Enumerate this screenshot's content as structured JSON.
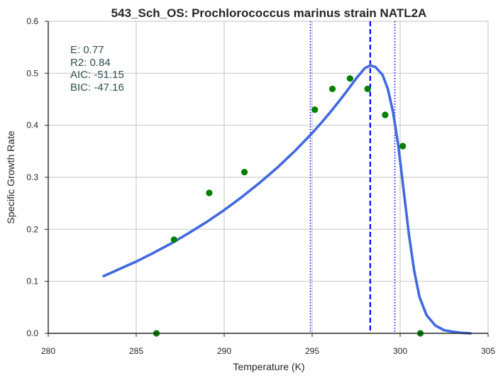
{
  "chart_data": {
    "type": "scatter",
    "title": "543_Sch_OS: Prochlorococcus marinus strain NATL2A",
    "xlabel": "Temperature (K)",
    "ylabel": "Specific Growth Rate",
    "xlim": [
      280,
      305
    ],
    "ylim": [
      0.0,
      0.6
    ],
    "xticks": [
      "280",
      "285",
      "290",
      "295",
      "300",
      "305"
    ],
    "xtick_values": [
      280,
      285,
      290,
      295,
      300,
      305
    ],
    "yticks": [
      "0.0",
      "0.1",
      "0.2",
      "0.3",
      "0.4",
      "0.5",
      "0.6"
    ],
    "ytick_values": [
      0.0,
      0.1,
      0.2,
      0.3,
      0.4,
      0.5,
      0.6
    ],
    "grid": true,
    "points": {
      "color": "#008000",
      "x": [
        286.15,
        287.15,
        289.15,
        291.15,
        295.15,
        296.15,
        297.15,
        298.15,
        299.15,
        300.15,
        301.15
      ],
      "y": [
        0.0,
        0.18,
        0.27,
        0.31,
        0.43,
        0.47,
        0.49,
        0.47,
        0.42,
        0.36,
        0.0
      ]
    },
    "fit_curve": {
      "color": "#4169e1",
      "x": [
        283.15,
        284.0,
        285.0,
        286.0,
        287.0,
        288.0,
        289.0,
        290.0,
        291.0,
        292.0,
        293.0,
        294.0,
        295.0,
        295.5,
        296.0,
        296.5,
        297.0,
        297.5,
        298.0,
        298.3,
        298.6,
        299.0,
        299.3,
        299.6,
        299.9,
        300.2,
        300.5,
        300.8,
        301.1,
        301.5,
        302.0,
        302.5,
        303.0,
        303.5,
        304.0
      ],
      "y": [
        0.11,
        0.123,
        0.138,
        0.155,
        0.173,
        0.193,
        0.214,
        0.237,
        0.262,
        0.289,
        0.318,
        0.35,
        0.385,
        0.404,
        0.424,
        0.445,
        0.467,
        0.49,
        0.51,
        0.515,
        0.512,
        0.497,
        0.47,
        0.425,
        0.36,
        0.275,
        0.19,
        0.12,
        0.07,
        0.035,
        0.015,
        0.006,
        0.003,
        0.001,
        0.0
      ]
    },
    "vlines": [
      {
        "x": 298.3,
        "style": "dashed",
        "color": "#0000ff"
      },
      {
        "x": 294.9,
        "style": "dotted",
        "color": "#0000ff"
      },
      {
        "x": 299.7,
        "style": "dotted",
        "color": "#0000ff"
      }
    ],
    "annotations": [
      "E:  0.77",
      "R2:  0.84",
      "AIC: -51.15",
      "BIC: -47.16"
    ]
  }
}
